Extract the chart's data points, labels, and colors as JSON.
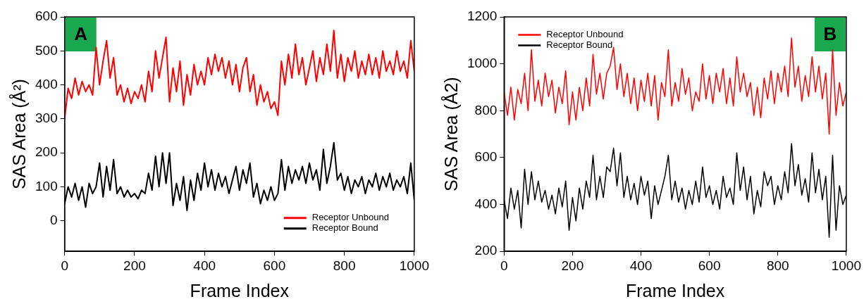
{
  "chart_data": [
    {
      "type": "line",
      "annotations": [
        "A"
      ],
      "xlabel": "Frame Index",
      "ylabel": "SAS Area (Å²)",
      "x": [
        0,
        10,
        20,
        30,
        40,
        50,
        60,
        70,
        80,
        90,
        100,
        110,
        120,
        130,
        140,
        150,
        160,
        170,
        180,
        190,
        200,
        210,
        220,
        230,
        240,
        250,
        260,
        270,
        280,
        290,
        300,
        310,
        320,
        330,
        340,
        350,
        360,
        370,
        380,
        390,
        400,
        410,
        420,
        430,
        440,
        450,
        460,
        470,
        480,
        490,
        500,
        510,
        520,
        530,
        540,
        550,
        560,
        570,
        580,
        590,
        600,
        610,
        620,
        630,
        640,
        650,
        660,
        670,
        680,
        690,
        700,
        710,
        720,
        730,
        740,
        750,
        760,
        770,
        780,
        790,
        800,
        810,
        820,
        830,
        840,
        850,
        860,
        870,
        880,
        890,
        900,
        910,
        920,
        930,
        940,
        950,
        960,
        970,
        980,
        990,
        1000
      ],
      "series": [
        {
          "name": "Receptor Unbound",
          "color": "#ff0000",
          "values": [
            300,
            390,
            360,
            420,
            370,
            410,
            380,
            400,
            370,
            510,
            400,
            470,
            530,
            420,
            480,
            370,
            400,
            350,
            390,
            345,
            380,
            360,
            400,
            350,
            440,
            380,
            500,
            420,
            480,
            540,
            350,
            450,
            380,
            470,
            340,
            430,
            370,
            460,
            400,
            440,
            400,
            480,
            430,
            490,
            440,
            480,
            420,
            470,
            400,
            460,
            380,
            450,
            480,
            380,
            430,
            340,
            400,
            350,
            380,
            330,
            350,
            310,
            470,
            400,
            490,
            420,
            520,
            430,
            480,
            400,
            450,
            500,
            410,
            480,
            430,
            520,
            440,
            560,
            420,
            490,
            410,
            480,
            440,
            500,
            420,
            470,
            430,
            490,
            430,
            480,
            420,
            500,
            440,
            470,
            430,
            500,
            440,
            470,
            420,
            530,
            440
          ]
        },
        {
          "name": "Receptor Bound",
          "color": "#000000",
          "values": [
            50,
            100,
            70,
            110,
            60,
            100,
            40,
            110,
            80,
            100,
            170,
            70,
            160,
            90,
            180,
            80,
            100,
            70,
            90,
            70,
            80,
            65,
            90,
            80,
            140,
            90,
            190,
            100,
            200,
            110,
            200,
            45,
            110,
            60,
            130,
            30,
            120,
            60,
            140,
            90,
            170,
            100,
            150,
            90,
            140,
            100,
            130,
            80,
            120,
            160,
            90,
            150,
            110,
            170,
            70,
            110,
            50,
            90,
            60,
            100,
            60,
            80,
            180,
            90,
            160,
            110,
            150,
            120,
            160,
            110,
            170,
            120,
            150,
            90,
            210,
            110,
            160,
            230,
            120,
            140,
            90,
            130,
            80,
            120,
            100,
            130,
            80,
            120,
            100,
            140,
            90,
            130,
            100,
            140,
            90,
            120,
            100,
            130,
            80,
            170,
            60
          ]
        }
      ],
      "xlim": [
        0,
        1000
      ],
      "xticks": [
        0,
        200,
        400,
        600,
        800,
        1000
      ],
      "ylim": [
        -90,
        600
      ],
      "yticks": [
        0,
        100,
        200,
        300,
        400,
        500,
        600
      ],
      "grid": false,
      "legend": "bottom right",
      "marker": "none",
      "line_style": "solid"
    },
    {
      "type": "line",
      "annotations": [
        "B"
      ],
      "xlabel": "Frame Index",
      "ylabel": "SAS Area (Å2)",
      "x": [
        0,
        10,
        20,
        30,
        40,
        50,
        60,
        70,
        80,
        90,
        100,
        110,
        120,
        130,
        140,
        150,
        160,
        170,
        180,
        190,
        200,
        210,
        220,
        230,
        240,
        250,
        260,
        270,
        280,
        290,
        300,
        310,
        320,
        330,
        340,
        350,
        360,
        370,
        380,
        390,
        400,
        410,
        420,
        430,
        440,
        450,
        460,
        470,
        480,
        490,
        500,
        510,
        520,
        530,
        540,
        550,
        560,
        570,
        580,
        590,
        600,
        610,
        620,
        630,
        640,
        650,
        660,
        670,
        680,
        690,
        700,
        710,
        720,
        730,
        740,
        750,
        760,
        770,
        780,
        790,
        800,
        810,
        820,
        830,
        840,
        850,
        860,
        870,
        880,
        890,
        900,
        910,
        920,
        930,
        940,
        950,
        960,
        970,
        980,
        990,
        1000
      ],
      "series": [
        {
          "name": "Receptor Unbound",
          "color": "#ff0000",
          "values": [
            880,
            780,
            900,
            760,
            890,
            830,
            960,
            800,
            1060,
            840,
            930,
            820,
            960,
            860,
            930,
            790,
            900,
            830,
            970,
            740,
            880,
            760,
            900,
            800,
            940,
            820,
            1040,
            870,
            960,
            850,
            960,
            990,
            1070,
            890,
            1000,
            860,
            960,
            830,
            940,
            800,
            930,
            840,
            960,
            820,
            950,
            760,
            920,
            860,
            1060,
            820,
            920,
            840,
            980,
            870,
            940,
            800,
            880,
            840,
            1000,
            850,
            950,
            830,
            960,
            880,
            980,
            830,
            940,
            820,
            1030,
            880,
            960,
            860,
            920,
            780,
            900,
            770,
            940,
            850,
            970,
            830,
            960,
            880,
            990,
            860,
            1110,
            900,
            990,
            840,
            950,
            860,
            1030,
            880,
            990,
            850,
            960,
            700,
            1060,
            780,
            920,
            820,
            880
          ]
        },
        {
          "name": "Receptor Bound",
          "color": "#000000",
          "values": [
            420,
            340,
            470,
            380,
            460,
            300,
            550,
            400,
            540,
            420,
            500,
            410,
            460,
            380,
            440,
            360,
            470,
            390,
            500,
            290,
            430,
            330,
            470,
            380,
            500,
            430,
            610,
            420,
            520,
            430,
            560,
            540,
            640,
            480,
            620,
            430,
            520,
            420,
            490,
            400,
            520,
            440,
            500,
            340,
            480,
            400,
            460,
            520,
            610,
            420,
            500,
            410,
            470,
            380,
            460,
            400,
            500,
            410,
            560,
            430,
            480,
            400,
            460,
            380,
            520,
            430,
            470,
            400,
            620,
            460,
            560,
            420,
            520,
            360,
            460,
            390,
            540,
            480,
            520,
            400,
            480,
            420,
            540,
            450,
            660,
            480,
            570,
            440,
            510,
            410,
            620,
            450,
            550,
            420,
            520,
            260,
            610,
            290,
            480,
            400,
            440
          ]
        }
      ],
      "xlim": [
        0,
        1000
      ],
      "xticks": [
        0,
        200,
        400,
        600,
        800,
        1000
      ],
      "ylim": [
        200,
        1200
      ],
      "yticks": [
        200,
        400,
        600,
        800,
        1000,
        1200
      ],
      "grid": false,
      "legend": "top left",
      "marker": "none",
      "line_style": "solid"
    }
  ]
}
